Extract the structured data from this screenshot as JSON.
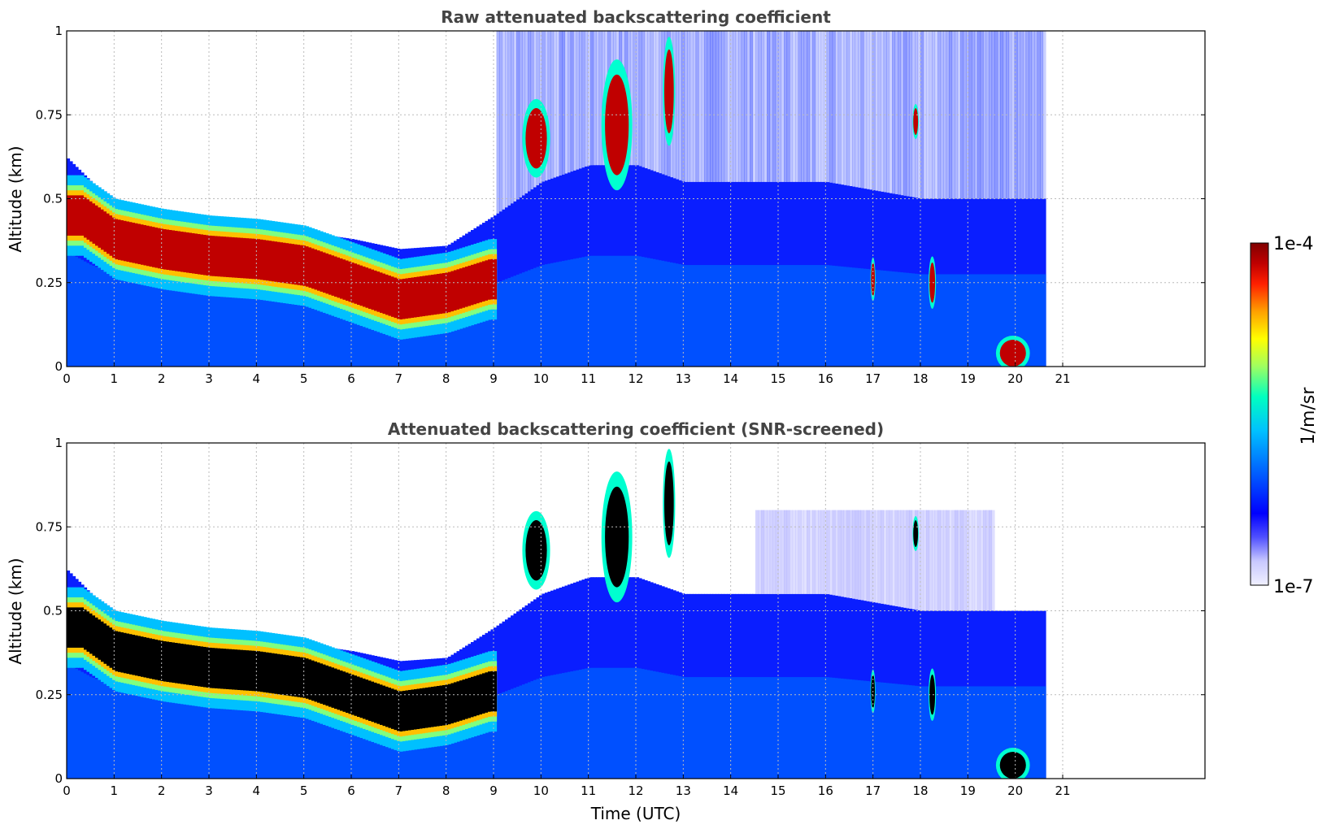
{
  "chart_data": [
    {
      "type": "heatmap",
      "title": "Raw attenuated backscattering coefficient",
      "xlabel": "",
      "ylabel": "Altitude (km)",
      "xlim": [
        0,
        24
      ],
      "ylim": [
        0,
        1
      ],
      "xticks": [
        "0",
        "1",
        "2",
        "3",
        "4",
        "5",
        "6",
        "7",
        "8",
        "9",
        "10",
        "11",
        "12",
        "13",
        "14",
        "15",
        "16",
        "17",
        "18",
        "19",
        "20",
        "21"
      ],
      "yticks": [
        "0",
        "0.25",
        "0.5",
        "0.75",
        "1"
      ],
      "data_end_hour": 20.6,
      "grid": true,
      "layer_top_km": [
        [
          0,
          0.62
        ],
        [
          0.5,
          0.55
        ],
        [
          1,
          0.5
        ],
        [
          2,
          0.46
        ],
        [
          3,
          0.44
        ],
        [
          4,
          0.42
        ],
        [
          5,
          0.4
        ],
        [
          6,
          0.38
        ],
        [
          7,
          0.35
        ],
        [
          8,
          0.36
        ],
        [
          9,
          0.45
        ],
        [
          10,
          0.55
        ],
        [
          11,
          0.6
        ],
        [
          12,
          0.6
        ],
        [
          13,
          0.55
        ],
        [
          14,
          0.55
        ],
        [
          16,
          0.55
        ],
        [
          18,
          0.5
        ],
        [
          20.6,
          0.5
        ]
      ],
      "aerosol_core_km": [
        [
          0.3,
          0.45
        ],
        [
          1,
          0.38
        ],
        [
          2,
          0.35
        ],
        [
          3,
          0.33
        ],
        [
          4,
          0.32
        ],
        [
          5,
          0.3
        ],
        [
          6,
          0.25
        ],
        [
          7,
          0.2
        ],
        [
          8,
          0.22
        ],
        [
          8.9,
          0.26
        ]
      ],
      "cloud_patches": [
        {
          "t": 9.9,
          "alt": 0.68,
          "w": 0.45,
          "h": 0.18
        },
        {
          "t": 11.6,
          "alt": 0.72,
          "w": 0.5,
          "h": 0.3
        },
        {
          "t": 12.7,
          "alt": 0.82,
          "w": 0.2,
          "h": 0.25
        },
        {
          "t": 17.9,
          "alt": 0.73,
          "w": 0.1,
          "h": 0.08
        },
        {
          "t": 18.25,
          "alt": 0.25,
          "w": 0.12,
          "h": 0.12
        },
        {
          "t": 17.0,
          "alt": 0.26,
          "w": 0.08,
          "h": 0.1
        },
        {
          "t": 19.95,
          "alt": 0.04,
          "w": 0.55,
          "h": 0.08
        }
      ]
    },
    {
      "type": "heatmap",
      "title": "Attenuated backscattering coefficient (SNR-screened)",
      "xlabel": "Time (UTC)",
      "ylabel": "Altitude (km)",
      "xlim": [
        0,
        24
      ],
      "ylim": [
        0,
        1
      ],
      "xticks": [
        "0",
        "1",
        "2",
        "3",
        "4",
        "5",
        "6",
        "7",
        "8",
        "9",
        "10",
        "11",
        "12",
        "13",
        "14",
        "15",
        "16",
        "17",
        "18",
        "19",
        "20",
        "21"
      ],
      "yticks": [
        "0",
        "0.25",
        "0.5",
        "0.75",
        "1"
      ],
      "data_end_hour": 20.6,
      "grid": true
    }
  ],
  "colorbar": {
    "max_label": "1e-4",
    "min_label": "1e-7",
    "units": "1/m/sr",
    "colors": [
      "#f0f0ff",
      "#c8c8ff",
      "#8080ff",
      "#0000ff",
      "#0040ff",
      "#0080ff",
      "#00c0ff",
      "#00ffd0",
      "#80ff80",
      "#ffff00",
      "#ffc000",
      "#ff8000",
      "#ff2000",
      "#c00000",
      "#800000"
    ]
  }
}
